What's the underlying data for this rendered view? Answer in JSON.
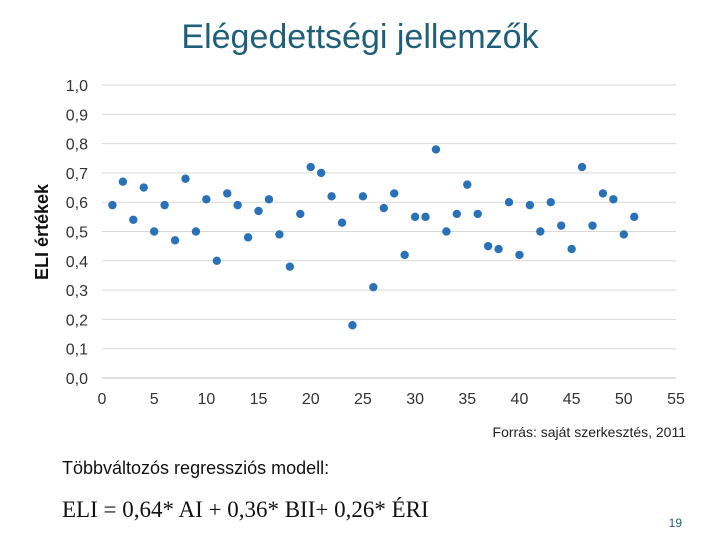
{
  "title": "Elégedettségi jellemzők",
  "source": "Forrás: saját szerkesztés, 2011",
  "model_label": "Többváltozós regressziós modell:",
  "formula": "ELI = 0,64* AI + 0,36* BII+ 0,26* ÉRI",
  "page_number": "19",
  "colors": {
    "title": "#1f5f78",
    "point": "#2a72b8",
    "grid": "#d9d9d9"
  },
  "chart_data": {
    "type": "scatter",
    "title": "",
    "xlabel": "",
    "ylabel": "ELI értékek",
    "xlim": [
      0,
      55
    ],
    "ylim": [
      0.0,
      1.0
    ],
    "grid": "horizontal",
    "xticks": [
      "0",
      "5",
      "10",
      "15",
      "20",
      "25",
      "30",
      "35",
      "40",
      "45",
      "50",
      "55"
    ],
    "yticks": [
      "0,0",
      "0,1",
      "0,2",
      "0,3",
      "0,4",
      "0,5",
      "0,6",
      "0,7",
      "0,8",
      "0,9",
      "1,0"
    ],
    "x": [
      1,
      2,
      3,
      4,
      5,
      6,
      7,
      8,
      9,
      10,
      11,
      12,
      13,
      14,
      15,
      16,
      17,
      18,
      19,
      20,
      21,
      22,
      23,
      24,
      25,
      26,
      27,
      28,
      29,
      30,
      31,
      32,
      33,
      34,
      35,
      36,
      37,
      38,
      39,
      40,
      41,
      42,
      43,
      44,
      45,
      46,
      47,
      48,
      49,
      50,
      51
    ],
    "y": [
      0.59,
      0.67,
      0.54,
      0.65,
      0.5,
      0.59,
      0.47,
      0.68,
      0.5,
      0.61,
      0.4,
      0.63,
      0.59,
      0.48,
      0.57,
      0.61,
      0.49,
      0.38,
      0.56,
      0.72,
      0.7,
      0.62,
      0.53,
      0.18,
      0.62,
      0.31,
      0.58,
      0.63,
      0.42,
      0.55,
      0.55,
      0.78,
      0.5,
      0.56,
      0.66,
      0.56,
      0.45,
      0.44,
      0.6,
      0.42,
      0.59,
      0.5,
      0.6,
      0.52,
      0.44,
      0.72,
      0.52,
      0.63,
      0.61,
      0.49,
      0.55
    ]
  }
}
